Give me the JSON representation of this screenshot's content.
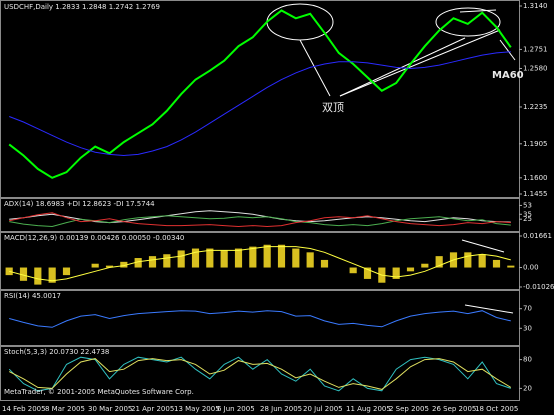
{
  "chart_data": [
    {
      "type": "line",
      "title": "USDCHF,Daily  1.2833 1.2848 1.2742 1.2769",
      "annotations": [
        "双顶",
        "MA60"
      ],
      "ylim": [
        1.1455,
        1.314
      ],
      "yticks": [
        {
          "value": 1.314,
          "label": "1.3140"
        },
        {
          "value": 1.2751,
          "label": "1.2751"
        },
        {
          "value": 1.258,
          "label": "1.2580"
        },
        1.2235,
        1.1905,
        {
          "value": 1.16,
          "label": "1.1600"
        },
        1.1455
      ],
      "series": [
        {
          "color": "#00ff00",
          "values": [
            1.19,
            1.18,
            1.168,
            1.16,
            1.165,
            1.178,
            1.188,
            1.182,
            1.192,
            1.2,
            1.208,
            1.22,
            1.235,
            1.248,
            1.256,
            1.265,
            1.278,
            1.286,
            1.3,
            1.31,
            1.303,
            1.307,
            1.29,
            1.272,
            1.262,
            1.25,
            1.238,
            1.245,
            1.262,
            1.278,
            1.292,
            1.303,
            1.298,
            1.308,
            1.295,
            1.277
          ]
        },
        {
          "color": "#2a2aff",
          "values": [
            1.215,
            1.21,
            1.204,
            1.198,
            1.192,
            1.187,
            1.183,
            1.181,
            1.18,
            1.181,
            1.184,
            1.188,
            1.194,
            1.201,
            1.209,
            1.217,
            1.225,
            1.233,
            1.241,
            1.248,
            1.254,
            1.259,
            1.262,
            1.264,
            1.264,
            1.263,
            1.261,
            1.259,
            1.258,
            1.259,
            1.261,
            1.264,
            1.267,
            1.27,
            1.272,
            1.273
          ]
        }
      ]
    },
    {
      "type": "line",
      "title": "ADX(14) 18.6983 +DI 12.8623 -DI 17.5744",
      "ylim": [
        5,
        60
      ],
      "yticks": [
        53,
        35,
        25
      ],
      "series": [
        {
          "color": "#e0e0e0",
          "values": [
            25,
            28,
            32,
            35,
            30,
            25,
            20,
            18,
            20,
            24,
            28,
            32,
            36,
            40,
            42,
            40,
            38,
            35,
            30,
            25,
            22,
            20,
            22,
            25,
            28,
            30,
            28,
            25,
            22,
            20,
            24,
            28,
            26,
            22,
            20,
            19
          ]
        },
        {
          "color": "#4caf50",
          "values": [
            20,
            15,
            12,
            10,
            18,
            25,
            22,
            18,
            24,
            28,
            30,
            32,
            30,
            28,
            26,
            27,
            30,
            28,
            30,
            26,
            20,
            18,
            14,
            12,
            14,
            12,
            16,
            22,
            26,
            28,
            30,
            26,
            22,
            24,
            16,
            13
          ]
        },
        {
          "color": "#e03030",
          "values": [
            22,
            28,
            34,
            38,
            28,
            20,
            22,
            26,
            20,
            16,
            14,
            12,
            12,
            13,
            14,
            12,
            10,
            12,
            10,
            12,
            18,
            22,
            28,
            30,
            28,
            32,
            26,
            20,
            16,
            14,
            12,
            14,
            18,
            16,
            20,
            18
          ]
        }
      ]
    },
    {
      "type": "bar",
      "title": "MACD(12,26,9) 0.00139 0.00426 0.00050 -0.00340",
      "ylim": [
        -0.01026,
        0.01661
      ],
      "yticks": [
        0.01661,
        {
          "value": 0,
          "label": "0.00"
        },
        -0.01026
      ],
      "series": [
        {
          "kind": "bar",
          "color": "#d8c020",
          "values": [
            -0.004,
            -0.007,
            -0.009,
            -0.008,
            -0.004,
            0.0,
            0.002,
            0.001,
            0.003,
            0.005,
            0.006,
            0.007,
            0.009,
            0.01,
            0.01,
            0.009,
            0.01,
            0.011,
            0.012,
            0.012,
            0.01,
            0.008,
            0.004,
            0.0,
            -0.003,
            -0.006,
            -0.008,
            -0.006,
            -0.002,
            0.002,
            0.006,
            0.008,
            0.008,
            0.007,
            0.004,
            0.001
          ]
        },
        {
          "kind": "line",
          "color": "#ffff40",
          "values": [
            -0.002,
            -0.004,
            -0.006,
            -0.007,
            -0.006,
            -0.004,
            -0.002,
            0.0,
            0.001,
            0.003,
            0.004,
            0.005,
            0.006,
            0.008,
            0.009,
            0.009,
            0.009,
            0.01,
            0.011,
            0.011,
            0.011,
            0.01,
            0.008,
            0.005,
            0.002,
            -0.001,
            -0.004,
            -0.005,
            -0.004,
            -0.002,
            0.001,
            0.004,
            0.006,
            0.007,
            0.006,
            0.004
          ]
        }
      ]
    },
    {
      "type": "line",
      "title": "RSI(14) 45.0017",
      "ylim": [
        0,
        100
      ],
      "yticks": [
        70,
        30
      ],
      "series": [
        {
          "color": "#3a7aff",
          "values": [
            50,
            42,
            35,
            32,
            45,
            55,
            58,
            50,
            56,
            60,
            62,
            64,
            66,
            65,
            60,
            62,
            65,
            63,
            66,
            64,
            55,
            56,
            45,
            38,
            40,
            36,
            33,
            45,
            55,
            60,
            63,
            65,
            60,
            66,
            52,
            45
          ]
        }
      ]
    },
    {
      "type": "line",
      "title": "Stoch(5,3,3) 20.0730 22.4738",
      "copyright": "MetaTrader, © 2001-2005 MetaQuotes Software Corp.",
      "ylim": [
        0,
        100
      ],
      "yticks": [
        80,
        20
      ],
      "categories": [
        "14 Feb 2005",
        null,
        null,
        "8 Mar 2005",
        null,
        null,
        "30 Mar 2005",
        null,
        null,
        "21 Apr 2005",
        null,
        null,
        "13 May 2005",
        null,
        null,
        "6 Jun 2005",
        null,
        null,
        "28 Jun 2005",
        null,
        null,
        "20 Jul 2005",
        null,
        null,
        "11 Aug 2005",
        null,
        null,
        "2 Sep 2005",
        null,
        null,
        "26 Sep 2005",
        null,
        null,
        "18 Oct 2005",
        null,
        null
      ],
      "series": [
        {
          "color": "#30c0c0",
          "values": [
            60,
            30,
            15,
            20,
            70,
            85,
            80,
            40,
            70,
            85,
            80,
            75,
            85,
            60,
            40,
            70,
            85,
            60,
            80,
            50,
            35,
            60,
            25,
            15,
            40,
            20,
            15,
            60,
            80,
            85,
            80,
            70,
            40,
            75,
            30,
            20
          ]
        },
        {
          "color": "#e0e060",
          "values": [
            55,
            40,
            22,
            20,
            50,
            75,
            82,
            55,
            60,
            78,
            82,
            78,
            80,
            70,
            50,
            58,
            78,
            70,
            72,
            60,
            42,
            50,
            35,
            22,
            30,
            25,
            18,
            40,
            65,
            80,
            82,
            75,
            55,
            60,
            40,
            22
          ]
        }
      ]
    }
  ]
}
